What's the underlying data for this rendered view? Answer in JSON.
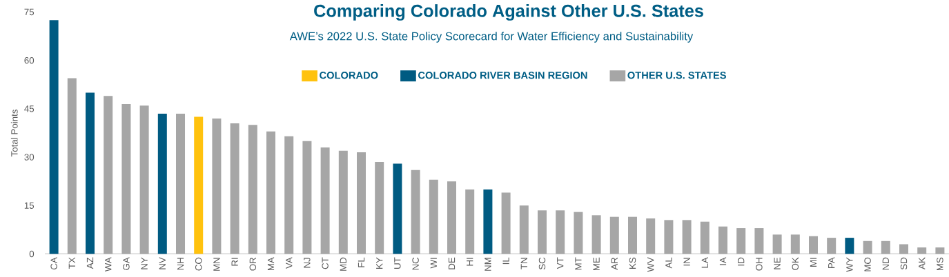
{
  "chart_data": {
    "type": "bar",
    "title": "Comparing Colorado Against Other U.S. States",
    "subtitle": "AWE’s 2022 U.S. State Policy Scorecard for Water Efficiency and Sustainability",
    "ylabel": "Total Points",
    "categories": [
      "CA",
      "TX",
      "AZ",
      "WA",
      "GA",
      "NY",
      "NV",
      "NH",
      "CO",
      "MN",
      "RI",
      "OR",
      "MA",
      "VA",
      "NJ",
      "CT",
      "MD",
      "FL",
      "KY",
      "UT",
      "NC",
      "WI",
      "DE",
      "HI",
      "NM",
      "IL",
      "TN",
      "SC",
      "VT",
      "MT",
      "ME",
      "AR",
      "KS",
      "WV",
      "AL",
      "IN",
      "LA",
      "IA",
      "ID",
      "OH",
      "NE",
      "OK",
      "MI",
      "PA",
      "WY",
      "MO",
      "ND",
      "SD",
      "AK",
      "MS"
    ],
    "series": [
      {
        "name": "COLORADO",
        "color": "#ffc20e",
        "values": [
          null,
          null,
          null,
          null,
          null,
          null,
          null,
          null,
          42.5,
          null,
          null,
          null,
          null,
          null,
          null,
          null,
          null,
          null,
          null,
          null,
          null,
          null,
          null,
          null,
          null,
          null,
          null,
          null,
          null,
          null,
          null,
          null,
          null,
          null,
          null,
          null,
          null,
          null,
          null,
          null,
          null,
          null,
          null,
          null,
          null,
          null,
          null,
          null,
          null,
          null
        ]
      },
      {
        "name": "COLORADO RIVER BASIN REGION",
        "color": "#005b82",
        "values": [
          72.5,
          null,
          50,
          null,
          null,
          null,
          43.5,
          null,
          null,
          null,
          null,
          null,
          null,
          null,
          null,
          null,
          null,
          null,
          null,
          28,
          null,
          null,
          null,
          null,
          20,
          null,
          null,
          null,
          null,
          null,
          null,
          null,
          null,
          null,
          null,
          null,
          null,
          null,
          null,
          null,
          null,
          null,
          null,
          null,
          5,
          null,
          null,
          null,
          null,
          null
        ]
      },
      {
        "name": "OTHER U.S. STATES",
        "color": "#a6a6a6",
        "values": [
          null,
          54.5,
          null,
          49,
          46.5,
          46,
          null,
          43.5,
          null,
          42,
          40.5,
          40,
          38,
          36.5,
          35,
          33,
          32,
          31.5,
          28.5,
          null,
          26,
          23,
          22.5,
          20,
          null,
          19,
          15,
          13.5,
          13.5,
          13,
          12,
          11.5,
          11.5,
          11,
          10.5,
          10.5,
          10,
          8.5,
          8,
          8,
          6,
          6,
          5.5,
          5,
          null,
          4,
          4,
          3,
          2,
          2
        ]
      }
    ],
    "ylim": [
      0,
      75
    ],
    "yticks": [
      0,
      15,
      30,
      45,
      60,
      75
    ],
    "legend": "top"
  }
}
